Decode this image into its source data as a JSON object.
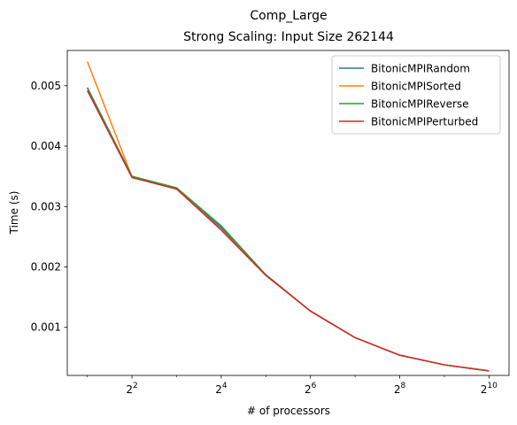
{
  "chart_data": {
    "type": "line",
    "title": "Comp_Large",
    "subtitle": "Strong Scaling: Input Size 262144",
    "xlabel": "# of processors",
    "ylabel": "Time (s)",
    "x_scale": "log2",
    "x": [
      2,
      4,
      8,
      16,
      32,
      64,
      128,
      256,
      512,
      1024
    ],
    "x_ticks": [
      4,
      16,
      64,
      256,
      1024
    ],
    "x_tick_labels": [
      {
        "base": "2",
        "exp": "2"
      },
      {
        "base": "2",
        "exp": "4"
      },
      {
        "base": "2",
        "exp": "6"
      },
      {
        "base": "2",
        "exp": "8"
      },
      {
        "base": "2",
        "exp": "10"
      }
    ],
    "y_ticks": [
      0.001,
      0.002,
      0.003,
      0.004,
      0.005
    ],
    "y_tick_labels": [
      "0.001",
      "0.002",
      "0.003",
      "0.004",
      "0.005"
    ],
    "ylim": [
      0.000205,
      0.005583
    ],
    "grid": false,
    "legend_position": "top-right",
    "series": [
      {
        "name": "BitonicMPIRandom",
        "color": "#1f77b4",
        "values": [
          0.00497,
          0.0035,
          0.0033,
          0.00265,
          0.00187,
          0.00127,
          0.00083,
          0.00054,
          0.00038,
          0.00028
        ]
      },
      {
        "name": "BitonicMPISorted",
        "color": "#ff7f0e",
        "values": [
          0.0054,
          0.00349,
          0.00329,
          0.00262,
          0.00186,
          0.00127,
          0.00083,
          0.00054,
          0.00038,
          0.00028
        ]
      },
      {
        "name": "BitonicMPIReverse",
        "color": "#2ca02c",
        "values": [
          0.00496,
          0.0035,
          0.00331,
          0.00268,
          0.00187,
          0.00127,
          0.00083,
          0.00054,
          0.00038,
          0.00028
        ]
      },
      {
        "name": "BitonicMPIPerturbed",
        "color": "#d62728",
        "values": [
          0.00492,
          0.00348,
          0.00329,
          0.00261,
          0.00186,
          0.00127,
          0.00083,
          0.00054,
          0.00038,
          0.00028
        ]
      }
    ]
  }
}
